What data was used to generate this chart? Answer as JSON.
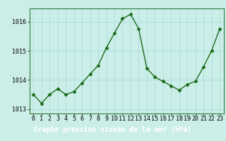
{
  "x": [
    0,
    1,
    2,
    3,
    4,
    5,
    6,
    7,
    8,
    9,
    10,
    11,
    12,
    13,
    14,
    15,
    16,
    17,
    18,
    19,
    20,
    21,
    22,
    23
  ],
  "y": [
    1013.5,
    1013.2,
    1013.5,
    1013.7,
    1013.5,
    1013.6,
    1013.9,
    1014.2,
    1014.5,
    1015.1,
    1015.6,
    1016.1,
    1016.25,
    1015.75,
    1014.4,
    1014.1,
    1013.95,
    1013.8,
    1013.65,
    1013.85,
    1013.95,
    1014.45,
    1015.0,
    1015.75
  ],
  "line_color": "#1a6b1a",
  "marker": "D",
  "markersize": 2.5,
  "linewidth": 1.0,
  "bg_color": "#cceee8",
  "plot_bg": "#cceee8",
  "grid_color": "#aadddd",
  "xlabel": "Graphe pression niveau de la mer (hPa)",
  "xlabel_fontsize": 7,
  "tick_fontsize": 6,
  "ylim": [
    1012.85,
    1016.45
  ],
  "yticks": [
    1013,
    1014,
    1015,
    1016
  ],
  "xticks": [
    0,
    1,
    2,
    3,
    4,
    5,
    6,
    7,
    8,
    9,
    10,
    11,
    12,
    13,
    14,
    15,
    16,
    17,
    18,
    19,
    20,
    21,
    22,
    23
  ],
  "footer_bg": "#1a6b1a",
  "footer_text_color": "#ffffff"
}
